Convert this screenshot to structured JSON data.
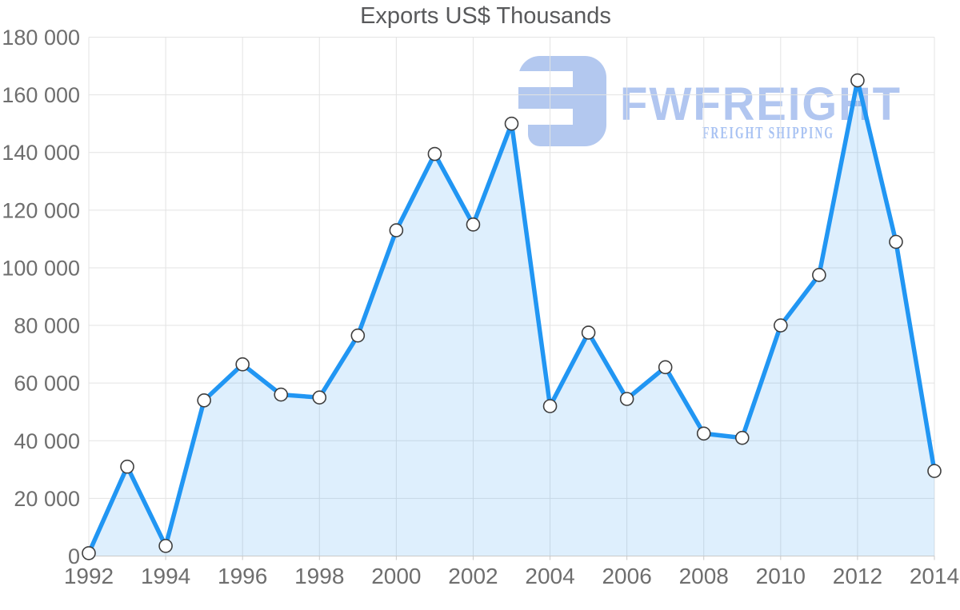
{
  "watermark": {
    "brand": "FWFREIGHT",
    "tagline": "FREIGHT SHIPPING",
    "brand_color": "#b1c6f0",
    "tagline_color": "#a9c3f3",
    "glyph_color": "#b3c8ef"
  },
  "colors": {
    "line": "#2196f3",
    "area_fill": "rgba(33,150,243,0.15)",
    "grid": "#e3e3e3",
    "axis": "#c9c9c9",
    "marker_fill": "#ffffff",
    "marker_stroke": "#3e3e3e",
    "axis_label": "#6e6e6e",
    "title": "#58595b"
  },
  "chart_data": {
    "type": "area",
    "title": "Exports US$ Thousands",
    "xlabel": "",
    "ylabel": "",
    "x": [
      1992,
      1993,
      1994,
      1995,
      1996,
      1997,
      1998,
      1999,
      2000,
      2001,
      2002,
      2003,
      2004,
      2005,
      2006,
      2007,
      2008,
      2009,
      2010,
      2011,
      2012,
      2013,
      2014
    ],
    "values": [
      1000,
      31000,
      3500,
      54000,
      66500,
      56000,
      55000,
      76500,
      113000,
      139500,
      115000,
      150000,
      52000,
      77500,
      54500,
      65500,
      42500,
      41000,
      80000,
      97500,
      165000,
      109000,
      29500
    ],
    "ylim": [
      0,
      180000
    ],
    "ytick_interval": 20000,
    "xtick_interval": 2,
    "y_tick_labels": [
      "0",
      "20 000",
      "40 000",
      "60 000",
      "80 000",
      "100 000",
      "120 000",
      "140 000",
      "160 000",
      "180 000"
    ],
    "x_tick_labels": [
      "1992",
      "1994",
      "1996",
      "1998",
      "2000",
      "2002",
      "2004",
      "2006",
      "2008",
      "2010",
      "2012",
      "2014"
    ],
    "grid": true,
    "legend_position": "none",
    "marker": "circle"
  }
}
